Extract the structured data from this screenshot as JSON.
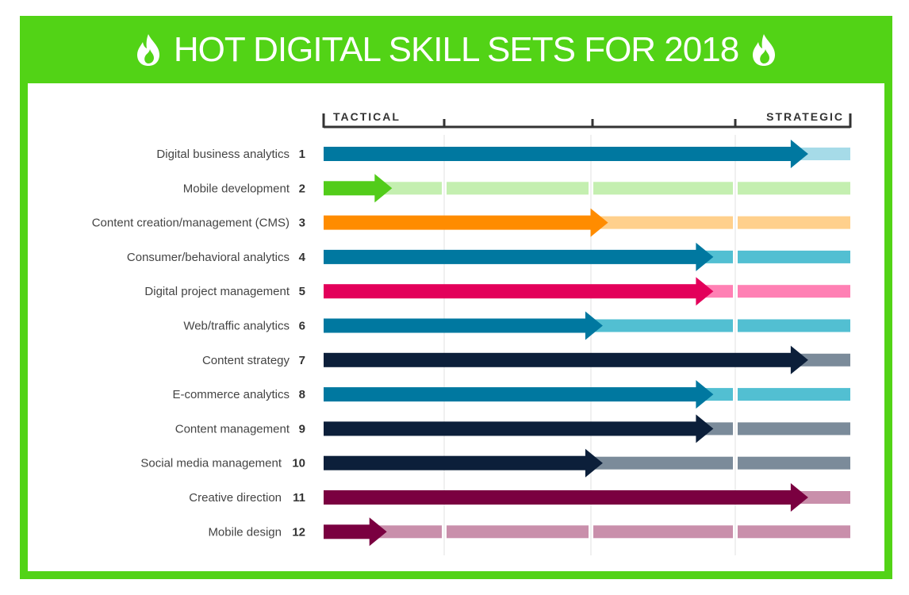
{
  "chart_data": {
    "type": "bar",
    "title": "HOT DIGITAL SKILL SETS FOR 2018",
    "scale_labels": {
      "left": "TACTICAL",
      "right": "STRATEGIC"
    },
    "value_meaning": "fraction of the way from tactical to strategic (0-1)",
    "xlim": [
      0,
      1
    ],
    "grid": true,
    "categories": [
      {
        "rank": "1",
        "label": "Digital business analytics",
        "value": 0.92,
        "color": "#0078a0",
        "track": "#a6dbe8"
      },
      {
        "rank": "2",
        "label": "Mobile development",
        "value": 0.13,
        "color": "#52cc1a",
        "track": "#c4efb0"
      },
      {
        "rank": "3",
        "label": "Content creation/management (CMS)",
        "value": 0.54,
        "color": "#ff8c00",
        "track": "#ffd08c"
      },
      {
        "rank": "4",
        "label": "Consumer/behavioral analytics",
        "value": 0.74,
        "color": "#0078a0",
        "track": "#52bfd2"
      },
      {
        "rank": "5",
        "label": "Digital project management",
        "value": 0.74,
        "color": "#e3005a",
        "track": "#ff80b4"
      },
      {
        "rank": "6",
        "label": "Web/traffic analytics",
        "value": 0.53,
        "color": "#0078a0",
        "track": "#52bfd2"
      },
      {
        "rank": "7",
        "label": "Content strategy",
        "value": 0.92,
        "color": "#0c1f3a",
        "track": "#7b8b9a"
      },
      {
        "rank": "8",
        "label": "E-commerce analytics",
        "value": 0.74,
        "color": "#0078a0",
        "track": "#52bfd2"
      },
      {
        "rank": "9",
        "label": "Content management",
        "value": 0.74,
        "color": "#0c1f3a",
        "track": "#7b8b9a"
      },
      {
        "rank": "10",
        "label": "Social media management",
        "value": 0.53,
        "color": "#0c1f3a",
        "track": "#7b8b9a"
      },
      {
        "rank": "11",
        "label": "Creative direction",
        "value": 0.92,
        "color": "#7a0040",
        "track": "#c98fab"
      },
      {
        "rank": "12",
        "label": "Mobile design",
        "value": 0.12,
        "color": "#7a0040",
        "track": "#c98fab"
      }
    ]
  },
  "colors": {
    "frame": "#52d316",
    "title_text": "#ffffff"
  },
  "icons": {
    "title_left": "flame-icon",
    "title_right": "flame-icon"
  }
}
